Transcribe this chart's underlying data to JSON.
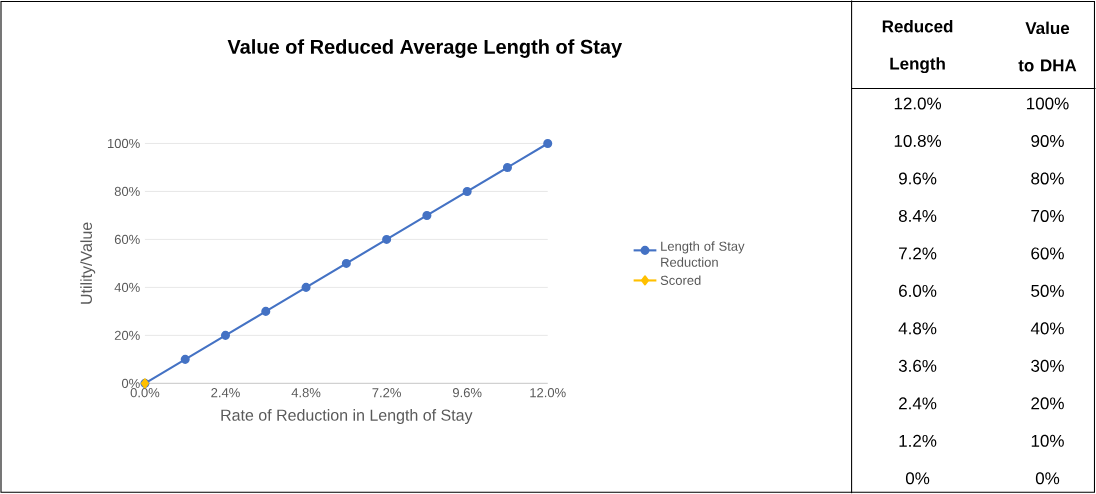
{
  "chart_data": {
    "type": "line",
    "title": "Value of Reduced Average Length of Stay",
    "xlabel": "Rate of Reduction in Length of Stay",
    "ylabel": "Utility/Value",
    "xlim": [
      0,
      12
    ],
    "ylim": [
      0,
      100
    ],
    "xticks": [
      {
        "value": 0,
        "label": "0.0%"
      },
      {
        "value": 2.4,
        "label": "2.4%"
      },
      {
        "value": 4.8,
        "label": "4.8%"
      },
      {
        "value": 7.2,
        "label": "7.2%"
      },
      {
        "value": 9.6,
        "label": "9.6%"
      },
      {
        "value": 12,
        "label": "12.0%"
      }
    ],
    "yticks": [
      {
        "value": 0,
        "label": "0%"
      },
      {
        "value": 20,
        "label": "20%"
      },
      {
        "value": 40,
        "label": "40%"
      },
      {
        "value": 60,
        "label": "60%"
      },
      {
        "value": 80,
        "label": "80%"
      },
      {
        "value": 100,
        "label": "100%"
      }
    ],
    "grid": "y",
    "legend": "right",
    "series": [
      {
        "name": "Length of Stay Reduction",
        "color": "#4472c4",
        "marker": "circle",
        "x": [
          0,
          1.2,
          2.4,
          3.6,
          4.8,
          6.0,
          7.2,
          8.4,
          9.6,
          10.8,
          12.0
        ],
        "values": [
          0,
          10,
          20,
          30,
          40,
          50,
          60,
          70,
          80,
          90,
          100
        ]
      },
      {
        "name": "Scored",
        "color": "#ffc000",
        "marker": "diamond",
        "x": [
          0
        ],
        "values": [
          0
        ]
      }
    ],
    "annotations": [
      "Reduced Length",
      "Value to DHA",
      "12.0%",
      "100%",
      "10.8%",
      "90%",
      "9.6%",
      "80%",
      "8.4%",
      "70%",
      "7.2%",
      "60%",
      "6.0%",
      "50%",
      "4.8%",
      "40%",
      "3.6%",
      "30%",
      "2.4%",
      "20%",
      "1.2%",
      "10%",
      "0%",
      "0%"
    ]
  }
}
